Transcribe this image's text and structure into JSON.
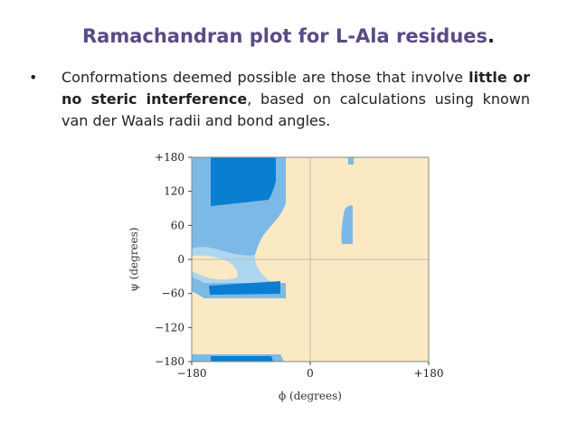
{
  "slide": {
    "title": "Ramachandran plot for L-Ala residues",
    "title_end": ".",
    "bullet_marker": "•",
    "bullet_line1": "Conformations deemed possible are those that involve",
    "bullet_bold": "little or no steric interference",
    "bullet_line2_rest": ", based on calculations using",
    "bullet_line3": "known van der Waals radii and bond angles."
  },
  "plot": {
    "x_label": "ϕ (degrees)",
    "y_label": "ψ (degrees)",
    "x_ticks": [
      "−180",
      "0",
      "+180"
    ],
    "y_ticks": [
      "+180",
      "120",
      "60",
      "0",
      "−60",
      "−120",
      "−180"
    ],
    "x_tick_values": [
      -180,
      0,
      180
    ],
    "y_tick_values": [
      180,
      120,
      60,
      0,
      -60,
      -120,
      -180
    ],
    "x_range": [
      -180,
      180
    ],
    "y_range": [
      -180,
      180
    ],
    "colors": {
      "background": "#fbe9c3",
      "allowed_outer": "#7cb9e6",
      "allowed_light": "#add6ef",
      "allowed_core": "#0a7ed0",
      "grid": "#bbbbbb",
      "frame": "#888888"
    }
  }
}
